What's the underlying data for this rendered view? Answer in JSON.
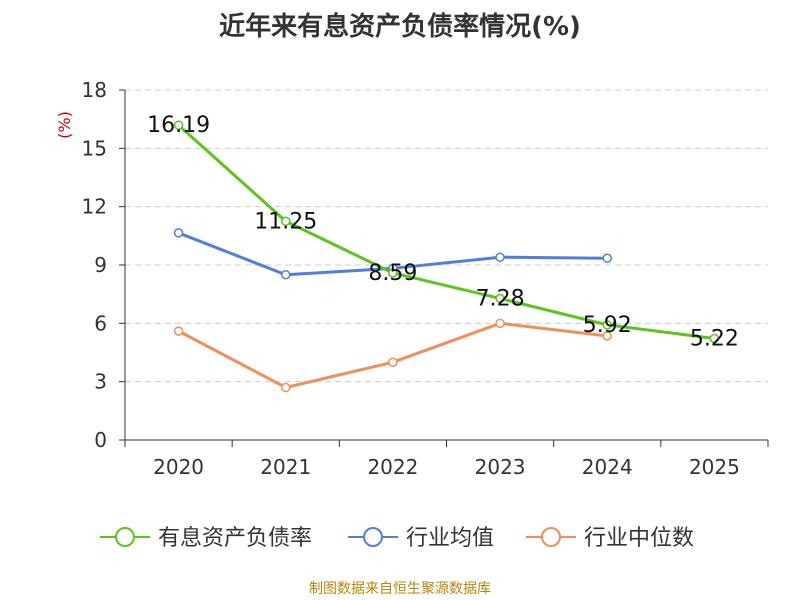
{
  "chart_data": {
    "type": "line",
    "title": "近年来有息资产负债率情况(%)",
    "ylabel": "(%)",
    "xlabel": "",
    "categories": [
      "2020",
      "2021",
      "2022",
      "2023",
      "2024",
      "2025"
    ],
    "ylim": [
      0,
      18
    ],
    "yticks": [
      0,
      3,
      6,
      9,
      12,
      15,
      18
    ],
    "grid": true,
    "legend_position": "bottom",
    "series": [
      {
        "name": "有息资产负债率",
        "color": "#5cc41f",
        "values": [
          16.19,
          11.25,
          8.59,
          7.28,
          5.92,
          5.22
        ],
        "show_labels": true
      },
      {
        "name": "行业均值",
        "color": "#4f7fdb",
        "values": [
          10.65,
          8.5,
          8.83,
          9.4,
          9.35,
          null
        ],
        "show_labels": false
      },
      {
        "name": "行业中位数",
        "color": "#f28e5c",
        "values": [
          5.6,
          2.7,
          4.0,
          6.0,
          5.35,
          null
        ],
        "show_labels": false
      }
    ],
    "data_labels": [
      "16.19",
      "11.25",
      "8.59",
      "7.28",
      "5.92",
      "5.22"
    ]
  },
  "footer": {
    "source": "制图数据来自恒生聚源数据库"
  },
  "colors": {
    "axis": "#333333",
    "grid": "#cccccc",
    "ylabel": "#cc0000"
  }
}
